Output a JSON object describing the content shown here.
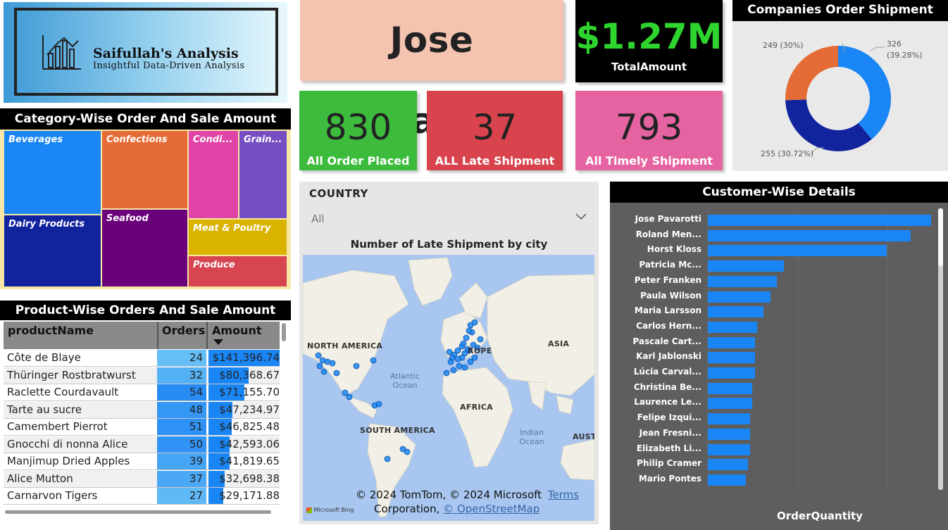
{
  "logo": {
    "title": "Saifullah's Analysis",
    "subtitle": "Insightful Data-Driven Analysis"
  },
  "kpis": {
    "customer_name": "Jose Pavarotti",
    "total_amount": {
      "value": "$1.27M",
      "label": "TotalAmount"
    },
    "orders_placed": {
      "value": "830",
      "label": "All Order Placed"
    },
    "late_shipment": {
      "value": "37",
      "label": "ALL Late Shipment"
    },
    "timely_shipment": {
      "value": "793",
      "label": "All Timely Shipment"
    }
  },
  "donut": {
    "title": "Companies Order Shipment",
    "labels": {
      "a": "326",
      "a2": "(39.28%)",
      "b": "255 (30.72%)",
      "c": "249 (30%)"
    }
  },
  "treemap": {
    "title": "Category-Wise Order And Sale Amount",
    "tiles": [
      "Beverages",
      "Confections",
      "Condi...",
      "Grain...",
      "Dairy Products",
      "Seafood",
      "Meat & Poultry",
      "Produce"
    ]
  },
  "product_table": {
    "title": "Product-Wise Orders And Sale Amount",
    "headers": {
      "name": "productName",
      "orders": "Orders",
      "amount": "Amount"
    },
    "rows": [
      {
        "name": "Côte de Blaye",
        "orders": "24",
        "amount": "$141,396.74"
      },
      {
        "name": "Thüringer Rostbratwurst",
        "orders": "32",
        "amount": "$80,368.67"
      },
      {
        "name": "Raclette Courdavault",
        "orders": "54",
        "amount": "$71,155.70"
      },
      {
        "name": "Tarte au sucre",
        "orders": "48",
        "amount": "$47,234.97"
      },
      {
        "name": "Camembert Pierrot",
        "orders": "51",
        "amount": "$46,825.48"
      },
      {
        "name": "Gnocchi di nonna Alice",
        "orders": "50",
        "amount": "$42,593.06"
      },
      {
        "name": "Manjimup Dried Apples",
        "orders": "39",
        "amount": "$41,819.65"
      },
      {
        "name": "Alice Mutton",
        "orders": "37",
        "amount": "$32,698.38"
      },
      {
        "name": "Carnarvon Tigers",
        "orders": "27",
        "amount": "$29,171.88"
      }
    ]
  },
  "slicer": {
    "label": "COUNTRY",
    "value": "All"
  },
  "map": {
    "title": "Number of Late Shipment by city",
    "continents": {
      "na": "NORTH AMERICA",
      "eu": "ROPE",
      "asia": "ASIA",
      "africa": "AFRICA",
      "sa": "SOUTH AMERICA",
      "au": "AUST"
    },
    "oceans": {
      "atl1": "Atlantic",
      "atl2": "Ocean",
      "ind1": "Indian",
      "ind2": "Ocean"
    },
    "attribution": {
      "line1": "© 2024 TomTom, © 2024 Microsoft",
      "terms": "Terms",
      "line2": "Corporation,",
      "osm": "© OpenStreetMap"
    },
    "brand": "Microsoft Bing"
  },
  "customer_chart": {
    "title": "Customer-Wise Details",
    "x_title": "OrderQuantity",
    "max_value": 100
  },
  "chart_data": {
    "type": "bar",
    "orientation": "horizontal",
    "title": "Customer-Wise Details",
    "xlabel": "OrderQuantity",
    "categories": [
      "Jose Pavarotti",
      "Roland Men...",
      "Horst Kloss",
      "Patricia Mc...",
      "Peter Franken",
      "Paula Wilson",
      "Maria Larsson",
      "Carlos Hern...",
      "Pascale Cart...",
      "Karl Jablonski",
      "Lúcia Carval...",
      "Christina Be...",
      "Laurence Le...",
      "Felipe Izqui...",
      "Jean Fresni...",
      "Elizabeth Li...",
      "Philip Cramer",
      "Mario Pontes"
    ],
    "values": [
      100,
      91,
      80,
      34,
      31,
      28,
      25,
      22,
      21,
      21,
      21,
      20,
      20,
      19,
      19,
      19,
      18,
      17
    ]
  },
  "colors": {
    "accent_blue": "#1a86f5",
    "green": "#3dbb3d",
    "red": "#d8434d",
    "pink": "#e563a0",
    "peach": "#f5c4b0"
  }
}
